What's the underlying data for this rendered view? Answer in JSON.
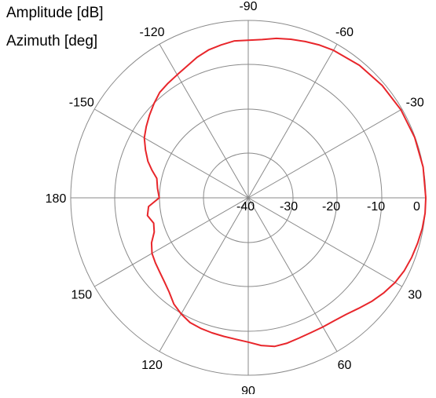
{
  "chart_data": {
    "type": "polar",
    "radial_axis_label": "Amplitude [dB]",
    "angular_axis_label": "Azimuth [deg]",
    "radial_range": [
      -40,
      0
    ],
    "radial_ticks": [
      -40,
      -30,
      -20,
      -10,
      0
    ],
    "radial_tick_labels": [
      "-40",
      "-30",
      "-20",
      "-10",
      "0"
    ],
    "angular_ticks": [
      -90,
      -60,
      -30,
      0,
      30,
      60,
      90,
      120,
      150,
      180,
      -150,
      -120
    ],
    "angular_tick_labels": [
      "-90",
      "-60",
      "-30",
      "0",
      "30",
      "60",
      "90",
      "120",
      "150",
      "180",
      "-150",
      "-120"
    ],
    "angle_zero": "right",
    "angle_direction": "clockwise",
    "grid": true,
    "series": [
      {
        "color": "#e8262b",
        "points": [
          {
            "azimuth": -180,
            "amplitude": -20
          },
          {
            "azimuth": -174,
            "amplitude": -19.5
          },
          {
            "azimuth": -168,
            "amplitude": -19
          },
          {
            "azimuth": -164,
            "amplitude": -17.5
          },
          {
            "azimuth": -160,
            "amplitude": -16
          },
          {
            "azimuth": -155,
            "amplitude": -14.5
          },
          {
            "azimuth": -150,
            "amplitude": -13
          },
          {
            "azimuth": -145,
            "amplitude": -12
          },
          {
            "azimuth": -140,
            "amplitude": -11
          },
          {
            "azimuth": -135,
            "amplitude": -10
          },
          {
            "azimuth": -130,
            "amplitude": -9
          },
          {
            "azimuth": -125,
            "amplitude": -8.5
          },
          {
            "azimuth": -120,
            "amplitude": -8
          },
          {
            "azimuth": -115,
            "amplitude": -7.3
          },
          {
            "azimuth": -110,
            "amplitude": -6.3
          },
          {
            "azimuth": -105,
            "amplitude": -5.5
          },
          {
            "azimuth": -100,
            "amplitude": -5
          },
          {
            "azimuth": -95,
            "amplitude": -4.5
          },
          {
            "azimuth": -90,
            "amplitude": -4.5
          },
          {
            "azimuth": -85,
            "amplitude": -4.2
          },
          {
            "azimuth": -80,
            "amplitude": -3.5
          },
          {
            "azimuth": -75,
            "amplitude": -3
          },
          {
            "azimuth": -70,
            "amplitude": -2.5
          },
          {
            "azimuth": -65,
            "amplitude": -2
          },
          {
            "azimuth": -60,
            "amplitude": -1.6
          },
          {
            "azimuth": -50,
            "amplitude": -1
          },
          {
            "azimuth": -40,
            "amplitude": -0.6
          },
          {
            "azimuth": -30,
            "amplitude": -0.3
          },
          {
            "azimuth": -20,
            "amplitude": -0.1
          },
          {
            "azimuth": -10,
            "amplitude": 0
          },
          {
            "azimuth": 0,
            "amplitude": 0
          },
          {
            "azimuth": 5,
            "amplitude": 0
          },
          {
            "azimuth": 10,
            "amplitude": -0.2
          },
          {
            "azimuth": 15,
            "amplitude": -0.5
          },
          {
            "azimuth": 20,
            "amplitude": -0.8
          },
          {
            "azimuth": 25,
            "amplitude": -1.2
          },
          {
            "azimuth": 30,
            "amplitude": -1.8
          },
          {
            "azimuth": 35,
            "amplitude": -2.7
          },
          {
            "azimuth": 40,
            "amplitude": -3.7
          },
          {
            "azimuth": 45,
            "amplitude": -4.8
          },
          {
            "azimuth": 50,
            "amplitude": -5.7
          },
          {
            "azimuth": 55,
            "amplitude": -6.2
          },
          {
            "azimuth": 60,
            "amplitude": -6.4
          },
          {
            "azimuth": 65,
            "amplitude": -6.5
          },
          {
            "azimuth": 70,
            "amplitude": -6.4
          },
          {
            "azimuth": 75,
            "amplitude": -6.1
          },
          {
            "azimuth": 80,
            "amplitude": -6
          },
          {
            "azimuth": 85,
            "amplitude": -6.6
          },
          {
            "azimuth": 90,
            "amplitude": -7.5
          },
          {
            "azimuth": 95,
            "amplitude": -8
          },
          {
            "azimuth": 100,
            "amplitude": -8.3
          },
          {
            "azimuth": 105,
            "amplitude": -8.5
          },
          {
            "azimuth": 110,
            "amplitude": -8.7
          },
          {
            "azimuth": 115,
            "amplitude": -9
          },
          {
            "azimuth": 120,
            "amplitude": -9.8
          },
          {
            "azimuth": 125,
            "amplitude": -10.8
          },
          {
            "azimuth": 130,
            "amplitude": -12.3
          },
          {
            "azimuth": 135,
            "amplitude": -13.3
          },
          {
            "azimuth": 140,
            "amplitude": -14
          },
          {
            "azimuth": 145,
            "amplitude": -14.5
          },
          {
            "azimuth": 150,
            "amplitude": -15
          },
          {
            "azimuth": 155,
            "amplitude": -16
          },
          {
            "azimuth": 160,
            "amplitude": -17.5
          },
          {
            "azimuth": 165,
            "amplitude": -18
          },
          {
            "azimuth": 170,
            "amplitude": -17
          },
          {
            "azimuth": 175,
            "amplitude": -17.5
          },
          {
            "azimuth": 180,
            "amplitude": -20
          }
        ]
      }
    ]
  }
}
